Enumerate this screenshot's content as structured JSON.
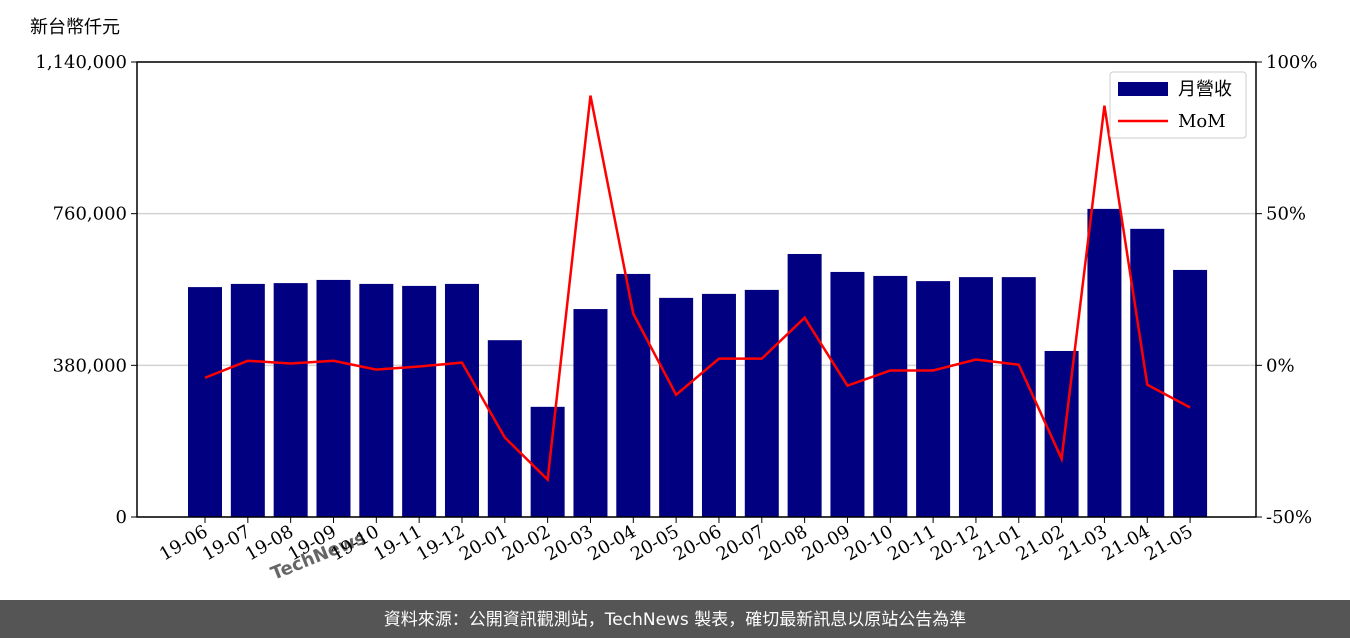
{
  "chart_data": {
    "type": "bar",
    "y_label": "新台幣仟元",
    "watermark": "TechNews",
    "footer": "資料來源：公開資訊觀測站，TechNews 製表，確切最新訊息以原站公告為準",
    "categories": [
      "19-06",
      "19-07",
      "19-08",
      "19-09",
      "19-10",
      "19-11",
      "19-12",
      "20-01",
      "20-02",
      "20-03",
      "20-04",
      "20-05",
      "20-06",
      "20-07",
      "20-08",
      "20-09",
      "20-10",
      "20-11",
      "20-12",
      "21-01",
      "21-02",
      "21-03",
      "21-04",
      "21-05"
    ],
    "series": [
      {
        "name": "月營收",
        "type": "bar",
        "color": "#000080",
        "values": [
          576000,
          584000,
          586000,
          594000,
          584000,
          579000,
          584000,
          443000,
          276000,
          521000,
          609000,
          549000,
          559000,
          569000,
          659000,
          614000,
          604000,
          591000,
          601000,
          601000,
          416000,
          772000,
          722000,
          619000
        ]
      },
      {
        "name": "MoM",
        "type": "line",
        "axis": "y2",
        "color": "#ff0000",
        "values": [
          -4.1,
          1.5,
          0.6,
          1.5,
          -1.4,
          -0.4,
          0.9,
          -23.8,
          -37.7,
          88.9,
          17.0,
          -9.7,
          2.2,
          2.2,
          15.7,
          -6.7,
          -1.7,
          -1.7,
          1.9,
          0.2,
          -30.8,
          85.6,
          -6.4,
          -13.9
        ]
      }
    ],
    "ylim": [
      0,
      1140000
    ],
    "yticks": [
      0,
      {
        "value": 380000,
        "label": "380,000"
      },
      {
        "value": 760000,
        "label": "760,000"
      },
      {
        "value": 1140000,
        "label": "1,140,000"
      }
    ],
    "y2lim": [
      -50,
      100
    ],
    "y2ticks": [
      {
        "value": -50,
        "label": "-50%"
      },
      {
        "value": 0,
        "label": "0%"
      },
      {
        "value": 50,
        "label": "50%"
      },
      {
        "value": 100,
        "label": "100%"
      }
    ],
    "grid": true,
    "legend": "upper right"
  }
}
